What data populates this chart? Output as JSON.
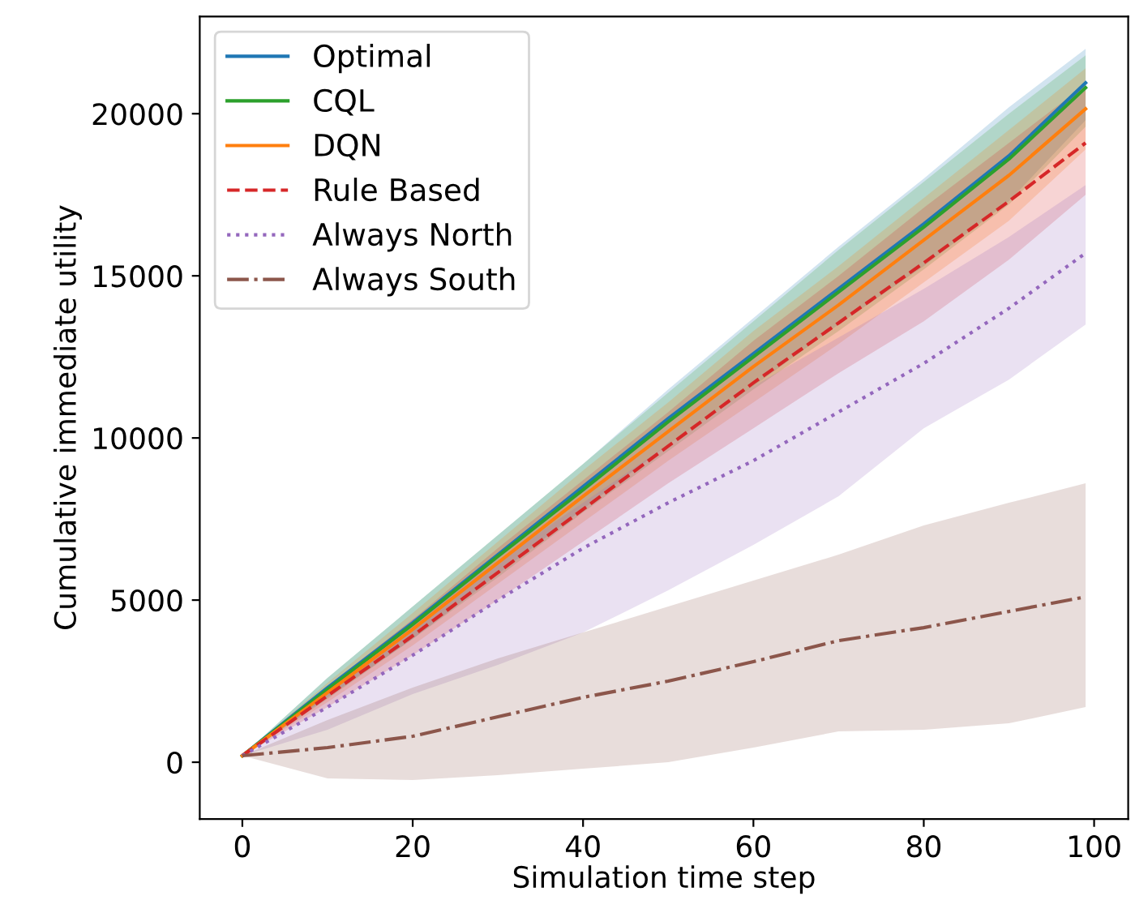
{
  "chart_data": {
    "type": "line",
    "xlabel": "Simulation time step",
    "ylabel": "Cumulative immediate utility",
    "x": [
      0,
      10,
      20,
      30,
      40,
      50,
      60,
      70,
      80,
      90,
      99
    ],
    "xlim": [
      -5,
      104
    ],
    "ylim": [
      -1750,
      23000
    ],
    "xticks": [
      0,
      20,
      40,
      60,
      80,
      100
    ],
    "yticks": [
      0,
      5000,
      10000,
      15000,
      20000
    ],
    "grid": false,
    "legend": "top left",
    "marker": "none",
    "series": [
      {
        "name": "Optimal",
        "color": "#1f77b4",
        "line_style": "solid",
        "values": [
          200,
          2300,
          4300,
          6400,
          8500,
          10600,
          12600,
          14600,
          16600,
          18700,
          20950
        ],
        "upper": [
          200,
          2600,
          4800,
          7000,
          9200,
          11500,
          13700,
          15900,
          18000,
          20200,
          22000
        ],
        "lower": [
          200,
          2000,
          3800,
          5800,
          7800,
          9800,
          11600,
          13500,
          15300,
          17300,
          19800
        ]
      },
      {
        "name": "CQL",
        "color": "#2ca02c",
        "line_style": "solid",
        "values": [
          200,
          2250,
          4250,
          6350,
          8400,
          10500,
          12500,
          14500,
          16500,
          18600,
          20800
        ],
        "upper": [
          200,
          2600,
          4800,
          7000,
          9200,
          11400,
          13600,
          15800,
          17900,
          20000,
          21800
        ],
        "lower": [
          200,
          1950,
          3800,
          5700,
          7700,
          9600,
          11500,
          13300,
          15200,
          17200,
          19600
        ]
      },
      {
        "name": "DQN",
        "color": "#ff7f0e",
        "line_style": "solid",
        "values": [
          200,
          2150,
          4100,
          6150,
          8200,
          10200,
          12200,
          14100,
          16100,
          18100,
          20150
        ],
        "upper": [
          200,
          2450,
          4600,
          6800,
          9000,
          11100,
          13300,
          15300,
          17400,
          19500,
          21400
        ],
        "lower": [
          200,
          1850,
          3600,
          5500,
          7400,
          9300,
          11100,
          12900,
          14800,
          16700,
          18900
        ]
      },
      {
        "name": "Rule Based",
        "color": "#d62728",
        "line_style": "dashed",
        "values": [
          200,
          2050,
          3900,
          5850,
          7800,
          9750,
          11700,
          13550,
          15400,
          17300,
          19100
        ],
        "upper": [
          200,
          2350,
          4400,
          6600,
          8700,
          10800,
          13000,
          15000,
          17100,
          19100,
          20900
        ],
        "lower": [
          200,
          1700,
          3300,
          5000,
          6800,
          8600,
          10300,
          12000,
          13600,
          15500,
          17500
        ]
      },
      {
        "name": "Always North",
        "color": "#9467bd",
        "line_style": "dotted",
        "values": [
          200,
          1700,
          3300,
          5000,
          6600,
          8000,
          9300,
          10800,
          12300,
          14000,
          15700
        ],
        "upper": [
          200,
          2300,
          4400,
          6200,
          8000,
          9800,
          11600,
          13100,
          14600,
          16200,
          17800
        ],
        "lower": [
          200,
          1000,
          2100,
          3000,
          4000,
          5300,
          6700,
          8200,
          10300,
          11800,
          13500
        ]
      },
      {
        "name": "Always South",
        "color": "#8c564b",
        "line_style": "dashdot",
        "values": [
          200,
          450,
          800,
          1400,
          2000,
          2500,
          3100,
          3750,
          4150,
          4650,
          5100
        ],
        "upper": [
          200,
          1300,
          2300,
          3200,
          4000,
          4800,
          5600,
          6400,
          7300,
          8000,
          8600
        ],
        "lower": [
          200,
          -500,
          -550,
          -400,
          -200,
          0,
          450,
          950,
          1000,
          1200,
          1700
        ]
      }
    ]
  }
}
